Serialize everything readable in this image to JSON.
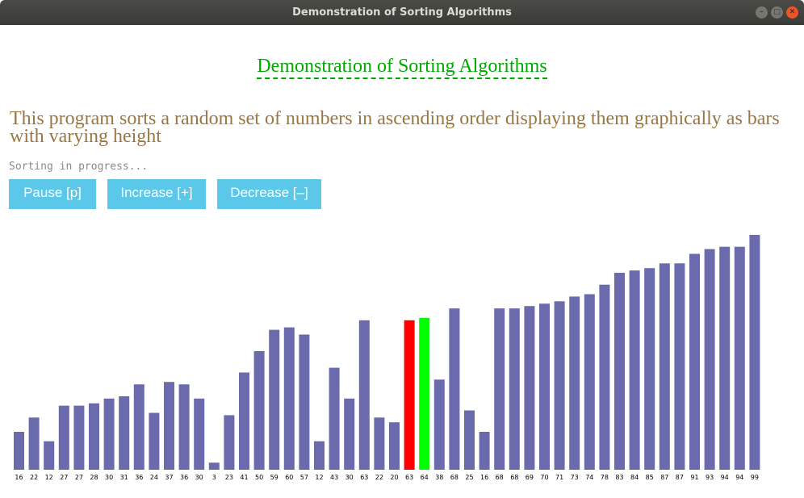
{
  "window": {
    "title": "Demonstration of Sorting Algorithms"
  },
  "page": {
    "heading": "Demonstration of Sorting Algorithms",
    "description": "This program sorts a random set of numbers in ascending order displaying them graphically as bars with varying height",
    "status": "Sorting in progress..."
  },
  "controls": {
    "pause_label": "Pause [p]",
    "increase_label": "Increase [+]",
    "decrease_label": "Decrease [–]"
  },
  "colors": {
    "bar": "#6a6aad",
    "compare_a": "#ff0000",
    "compare_b": "#00ff00",
    "heading": "#00a800",
    "description": "#9a7640",
    "button": "#5bc8ea"
  },
  "chart_data": {
    "type": "bar",
    "values": [
      16,
      22,
      12,
      27,
      27,
      28,
      30,
      31,
      36,
      24,
      37,
      36,
      30,
      3,
      23,
      41,
      50,
      59,
      60,
      57,
      12,
      43,
      30,
      63,
      22,
      20,
      63,
      64,
      38,
      68,
      25,
      16,
      68,
      68,
      69,
      70,
      71,
      73,
      74,
      78,
      83,
      84,
      85,
      87,
      87,
      91,
      93,
      94,
      94,
      99
    ],
    "highlight": {
      "red_index": 26,
      "green_index": 27
    },
    "ylim": [
      0,
      99
    ]
  }
}
